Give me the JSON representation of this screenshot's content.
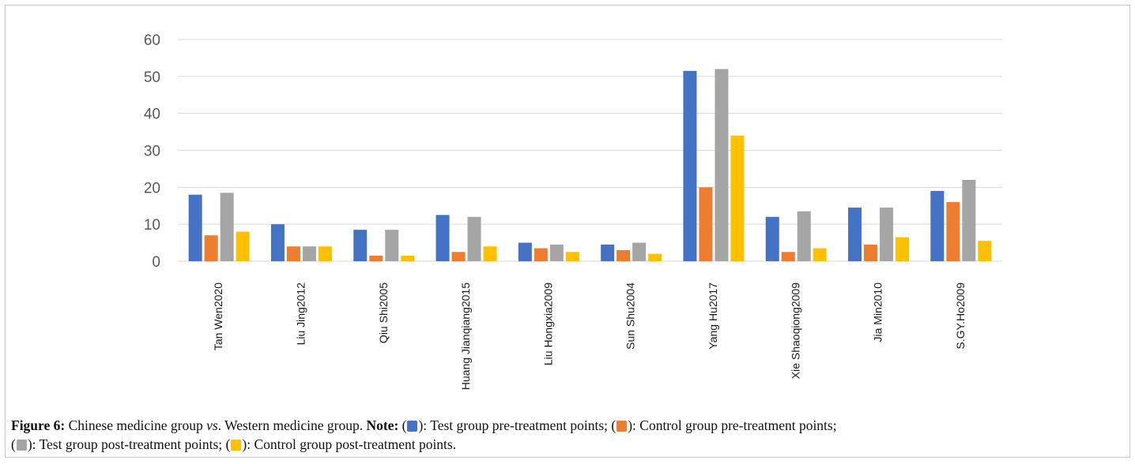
{
  "chart_data": {
    "type": "bar",
    "categories": [
      "Tan Wen2020",
      "Liu Jing2012",
      "Qiu Shi2005",
      "Huang Jianqiang2015",
      "Liu Hongxia2009",
      "Sun Shu2004",
      "Yang Hu2017",
      "Xie Shaoqiong2009",
      "Jia Min2010",
      "S.GY.Ho2009"
    ],
    "series": [
      {
        "values": [
          18,
          10,
          8.5,
          12.5,
          5,
          4.5,
          51.5,
          12,
          14.5,
          19
        ],
        "color": "#4472c4"
      },
      {
        "values": [
          7,
          4,
          1.5,
          2.5,
          3.5,
          3,
          20,
          2.5,
          4.5,
          16
        ],
        "color": "#ed7d31"
      },
      {
        "values": [
          18.5,
          4,
          8.5,
          12,
          4.5,
          5,
          52,
          13.5,
          14.5,
          22
        ],
        "color": "#a5a5a5"
      },
      {
        "values": [
          8,
          4,
          1.5,
          4,
          2.5,
          2,
          34,
          3.5,
          6.5,
          5.5
        ],
        "color": "#ffc000"
      }
    ],
    "ylim": [
      0,
      60
    ],
    "yticks": [
      0,
      10,
      20,
      30,
      40,
      50,
      60
    ],
    "grid": true
  },
  "caption": {
    "label": "Figure 6:",
    "text": "Chinese medicine group",
    "vs": "vs",
    "text2": ". Western medicine group.",
    "note_label": "Note:",
    "legend": [
      {
        "text": "): Test group pre-treatment points;",
        "color": "#4472c4"
      },
      {
        "text": "): Control group pre-treatment points;",
        "color": "#ed7d31"
      },
      {
        "text": "): Test group post-treatment points;",
        "color": "#a5a5a5"
      },
      {
        "text": "): Control group post-treatment points.",
        "color": "#ffc000"
      }
    ]
  }
}
